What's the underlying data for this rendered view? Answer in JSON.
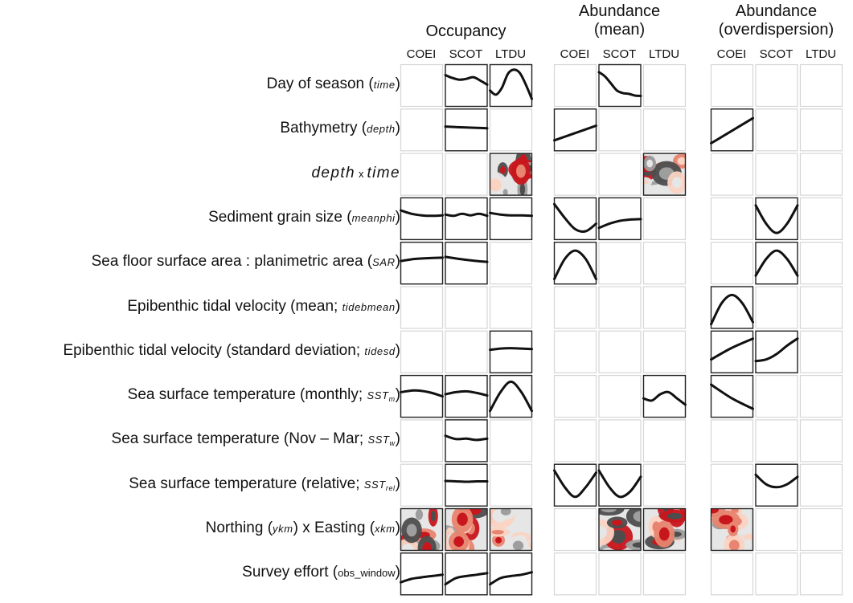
{
  "groups": [
    {
      "title_lines": [
        "Occupancy"
      ]
    },
    {
      "title_lines": [
        "Abundance",
        "(mean)"
      ]
    },
    {
      "title_lines": [
        "Abundance",
        "(overdispersion)"
      ]
    }
  ],
  "species": [
    "COEI",
    "SCOT",
    "LTDU"
  ],
  "rows": [
    {
      "text": "Day of season (",
      "var": "time",
      "close": ")"
    },
    {
      "text": "Bathymetry (",
      "var": "depth",
      "close": ")"
    },
    {
      "a": "depth",
      "x": "x",
      "b": "time"
    },
    {
      "text": "Sediment grain size (",
      "var": "meanphi",
      "close": ")"
    },
    {
      "text": "Sea floor surface area : planimetric area (",
      "var": "SAR",
      "close": ")"
    },
    {
      "text": "Epibenthic tidal velocity (mean; ",
      "var": "tidebmean",
      "close": ")"
    },
    {
      "text": "Epibenthic tidal velocity (standard deviation; ",
      "var": "tidesd",
      "close": ")"
    },
    {
      "text": "Sea surface temperature (monthly; ",
      "var": "SST",
      "sub": "m",
      "close": ")"
    },
    {
      "text": "Sea surface temperature (Nov – Mar; ",
      "var": "SST",
      "sub": "w",
      "close": ")"
    },
    {
      "text": "Sea surface temperature (relative; ",
      "var": "SST",
      "sub": "rel",
      "close": ")"
    },
    {
      "text": "Northing (",
      "var": "ykm",
      "mid": ") x Easting (",
      "var2": "xkm",
      "close": ")"
    },
    {
      "text": "Survey effort (",
      "plain": "obs_window",
      "close": ")"
    }
  ],
  "panels": [
    {
      "r": 0,
      "g": 0,
      "s": 1,
      "kind": "line",
      "y": [
        0.25,
        0.32,
        0.36,
        0.34,
        0.3,
        0.38,
        0.48
      ]
    },
    {
      "r": 0,
      "g": 0,
      "s": 2,
      "kind": "line",
      "y": [
        0.62,
        0.72,
        0.55,
        0.22,
        0.12,
        0.2,
        0.48,
        0.82
      ]
    },
    {
      "r": 0,
      "g": 1,
      "s": 1,
      "kind": "line",
      "y": [
        0.18,
        0.28,
        0.45,
        0.62,
        0.68,
        0.7,
        0.74,
        0.75
      ]
    },
    {
      "r": 1,
      "g": 0,
      "s": 1,
      "kind": "line",
      "y": [
        0.42,
        0.43,
        0.44,
        0.45,
        0.46
      ]
    },
    {
      "r": 1,
      "g": 1,
      "s": 0,
      "kind": "line",
      "y": [
        0.75,
        0.4
      ]
    },
    {
      "r": 1,
      "g": 2,
      "s": 0,
      "kind": "line",
      "y": [
        0.82,
        0.22
      ]
    },
    {
      "r": 2,
      "g": 0,
      "s": 2,
      "kind": "map"
    },
    {
      "r": 2,
      "g": 1,
      "s": 2,
      "kind": "map"
    },
    {
      "r": 3,
      "g": 0,
      "s": 0,
      "kind": "line",
      "y": [
        0.3,
        0.38,
        0.42,
        0.43,
        0.42
      ]
    },
    {
      "r": 3,
      "g": 0,
      "s": 1,
      "kind": "line",
      "y": [
        0.4,
        0.43,
        0.38,
        0.42,
        0.38,
        0.43
      ]
    },
    {
      "r": 3,
      "g": 0,
      "s": 2,
      "kind": "line",
      "y": [
        0.36,
        0.4,
        0.42,
        0.42,
        0.43
      ]
    },
    {
      "r": 3,
      "g": 1,
      "s": 0,
      "kind": "line",
      "y": [
        0.15,
        0.48,
        0.75,
        0.8,
        0.62
      ]
    },
    {
      "r": 3,
      "g": 1,
      "s": 1,
      "kind": "line",
      "y": [
        0.72,
        0.62,
        0.55,
        0.52,
        0.51
      ]
    },
    {
      "r": 3,
      "g": 2,
      "s": 1,
      "kind": "line",
      "y": [
        0.18,
        0.62,
        0.84,
        0.62,
        0.18
      ]
    },
    {
      "r": 4,
      "g": 0,
      "s": 0,
      "kind": "line",
      "y": [
        0.45,
        0.4,
        0.38,
        0.37
      ]
    },
    {
      "r": 4,
      "g": 0,
      "s": 1,
      "kind": "line",
      "y": [
        0.35,
        0.4,
        0.44,
        0.47
      ]
    },
    {
      "r": 4,
      "g": 1,
      "s": 0,
      "kind": "line",
      "y": [
        0.88,
        0.4,
        0.2,
        0.4,
        0.88
      ]
    },
    {
      "r": 4,
      "g": 2,
      "s": 1,
      "kind": "line",
      "y": [
        0.8,
        0.4,
        0.2,
        0.4,
        0.8
      ]
    },
    {
      "r": 5,
      "g": 2,
      "s": 0,
      "kind": "line",
      "y": [
        0.9,
        0.4,
        0.2,
        0.4,
        0.85
      ]
    },
    {
      "r": 6,
      "g": 0,
      "s": 2,
      "kind": "line",
      "y": [
        0.45,
        0.42,
        0.41,
        0.42,
        0.43
      ]
    },
    {
      "r": 6,
      "g": 2,
      "s": 0,
      "kind": "line",
      "y": [
        0.68,
        0.4,
        0.18
      ]
    },
    {
      "r": 6,
      "g": 2,
      "s": 1,
      "kind": "line",
      "y": [
        0.72,
        0.68,
        0.55,
        0.35,
        0.18
      ]
    },
    {
      "r": 7,
      "g": 0,
      "s": 0,
      "kind": "line",
      "y": [
        0.4,
        0.36,
        0.4,
        0.5
      ]
    },
    {
      "r": 7,
      "g": 0,
      "s": 1,
      "kind": "line",
      "y": [
        0.45,
        0.4,
        0.38,
        0.42,
        0.48
      ]
    },
    {
      "r": 7,
      "g": 0,
      "s": 2,
      "kind": "line",
      "y": [
        0.85,
        0.4,
        0.15,
        0.4,
        0.85
      ]
    },
    {
      "r": 7,
      "g": 1,
      "s": 2,
      "kind": "line",
      "y": [
        0.55,
        0.6,
        0.45,
        0.4,
        0.55,
        0.7
      ]
    },
    {
      "r": 7,
      "g": 2,
      "s": 0,
      "kind": "line",
      "y": [
        0.22,
        0.55,
        0.8
      ]
    },
    {
      "r": 8,
      "g": 0,
      "s": 1,
      "kind": "line",
      "y": [
        0.38,
        0.46,
        0.45,
        0.48,
        0.45
      ]
    },
    {
      "r": 9,
      "g": 0,
      "s": 1,
      "kind": "line",
      "y": [
        0.4,
        0.41,
        0.42,
        0.41,
        0.41
      ]
    },
    {
      "r": 9,
      "g": 1,
      "s": 0,
      "kind": "line",
      "y": [
        0.15,
        0.55,
        0.78,
        0.55,
        0.2
      ]
    },
    {
      "r": 9,
      "g": 1,
      "s": 1,
      "kind": "line",
      "y": [
        0.15,
        0.55,
        0.78,
        0.65,
        0.3
      ]
    },
    {
      "r": 9,
      "g": 2,
      "s": 1,
      "kind": "line",
      "y": [
        0.25,
        0.48,
        0.55,
        0.48,
        0.3
      ]
    },
    {
      "r": 10,
      "g": 0,
      "s": 0,
      "kind": "map"
    },
    {
      "r": 10,
      "g": 0,
      "s": 1,
      "kind": "map"
    },
    {
      "r": 10,
      "g": 0,
      "s": 2,
      "kind": "map"
    },
    {
      "r": 10,
      "g": 1,
      "s": 1,
      "kind": "map"
    },
    {
      "r": 10,
      "g": 1,
      "s": 2,
      "kind": "map"
    },
    {
      "r": 10,
      "g": 2,
      "s": 0,
      "kind": "map"
    },
    {
      "r": 11,
      "g": 0,
      "s": 0,
      "kind": "line",
      "y": [
        0.7,
        0.62,
        0.58,
        0.55,
        0.52
      ]
    },
    {
      "r": 11,
      "g": 0,
      "s": 1,
      "kind": "line",
      "y": [
        0.75,
        0.6,
        0.55,
        0.52,
        0.48
      ]
    },
    {
      "r": 11,
      "g": 0,
      "s": 2,
      "kind": "line",
      "y": [
        0.75,
        0.6,
        0.55,
        0.52,
        0.46
      ]
    }
  ],
  "colors": {
    "empty_border": "#d6d6d6",
    "filled_border": "#222222",
    "line": "#111111",
    "map_palette": [
      "#c8161d",
      "#e8846f",
      "#fbd3c2",
      "#e6e6e6",
      "#9e9e9e",
      "#4d4d4d"
    ]
  }
}
